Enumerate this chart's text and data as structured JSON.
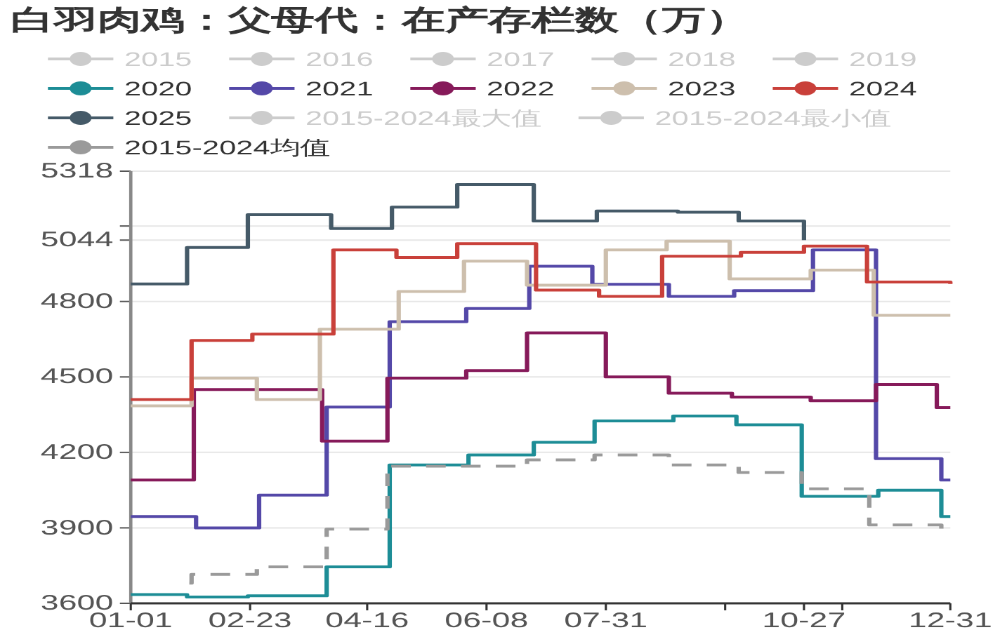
{
  "chart_data": {
    "type": "step",
    "title": "白羽肉鸡：父母代：在产存栏数（万）",
    "xlim": [
      "--01-01",
      "--12-31"
    ],
    "xticks": [
      {
        "value": "--01-01",
        "label": "01-01"
      },
      {
        "value": "--02-23",
        "label": "02-23"
      },
      {
        "value": "--04-16",
        "label": "04-16"
      },
      {
        "value": "--06-08",
        "label": "06-08"
      },
      {
        "value": "--07-31",
        "label": "07-31"
      },
      {
        "value": "--09-22",
        "label": null
      },
      {
        "value": "--10-27",
        "label": "10-27"
      },
      {
        "value": "--11-13",
        "label": null
      },
      {
        "value": "--12-31",
        "label": "12-31"
      }
    ],
    "ylim": [
      3600,
      5318
    ],
    "yticks": [
      3600,
      3900,
      4200,
      4500,
      4800,
      {
        "value": 5044,
        "label": "5044"
      },
      {
        "value": 5100,
        "label": null
      },
      5318
    ],
    "grid": "y",
    "legend": "top",
    "series": [
      {
        "name": "2015",
        "color": "#cccccc"
      },
      {
        "name": "2016",
        "color": "#cccccc"
      },
      {
        "name": "2017",
        "color": "#cccccc"
      },
      {
        "name": "2018",
        "color": "#cccccc"
      },
      {
        "name": "2019",
        "color": "#cccccc"
      },
      {
        "name": "2020",
        "color": "#1d8d96",
        "x": [
          "--01-01",
          "--01-26",
          "--02-22",
          "--03-29",
          "--04-26",
          "--05-31",
          "--06-29",
          "--07-26",
          "--08-30",
          "--09-27",
          "--10-26",
          "--11-29",
          "--12-27",
          "--12-31"
        ],
        "values": [
          3635,
          3625,
          3630,
          3745,
          4150,
          4190,
          4240,
          4325,
          4345,
          4310,
          4025,
          4050,
          3945,
          3945
        ]
      },
      {
        "name": "2021",
        "color": "#5448a8",
        "x": [
          "--01-01",
          "--01-30",
          "--02-27",
          "--03-29",
          "--04-26",
          "--05-30",
          "--06-27",
          "--07-25",
          "--08-28",
          "--09-26",
          "--10-31",
          "--11-28",
          "--12-27",
          "--12-31"
        ],
        "values": [
          3945,
          3900,
          4030,
          4380,
          4720,
          4772,
          4940,
          4868,
          4820,
          4843,
          5005,
          4175,
          4090,
          4090
        ]
      },
      {
        "name": "2022",
        "color": "#861a5a",
        "x": [
          "--01-01",
          "--01-29",
          "--03-27",
          "--04-25",
          "--05-30",
          "--06-26",
          "--07-31",
          "--08-28",
          "--09-25",
          "--10-30",
          "--11-28",
          "--12-25",
          "--12-31"
        ],
        "values": [
          4090,
          4450,
          4245,
          4495,
          4525,
          4675,
          4500,
          4435,
          4420,
          4405,
          4470,
          4378,
          4378
        ]
      },
      {
        "name": "2023",
        "color": "#cdbfad",
        "x": [
          "--01-01",
          "--01-28",
          "--02-26",
          "--03-26",
          "--04-30",
          "--05-29",
          "--06-26",
          "--07-31",
          "--08-27",
          "--09-24",
          "--10-30",
          "--11-27",
          "--12-31"
        ],
        "values": [
          4385,
          4495,
          4410,
          4690,
          4840,
          4960,
          4865,
          5005,
          5040,
          4890,
          4925,
          4745,
          4745
        ]
      },
      {
        "name": "2024",
        "color": "#c9403a",
        "x": [
          "--01-01",
          "--01-28",
          "--02-24",
          "--04-01",
          "--04-29",
          "--05-26",
          "--06-30",
          "--07-28",
          "--08-25",
          "--09-29",
          "--10-27",
          "--11-24",
          "--12-31"
        ],
        "values": [
          4410,
          4645,
          4670,
          5005,
          4975,
          5030,
          4845,
          4820,
          4980,
          4995,
          5020,
          4877,
          4870
        ]
      },
      {
        "name": "2025",
        "color": "#455a68",
        "x": [
          "--01-01",
          "--01-26",
          "--02-22",
          "--03-31",
          "--04-27",
          "--05-26",
          "--06-29",
          "--07-27",
          "--09-01",
          "--09-28",
          "--10-27"
        ],
        "values": [
          4870,
          5015,
          5145,
          5090,
          5175,
          5265,
          5120,
          5160,
          5155,
          5120,
          5044
        ]
      },
      {
        "name": "2015-2024最大值",
        "color": "#cccccc"
      },
      {
        "name": "2015-2024最小值",
        "color": "#cccccc"
      },
      {
        "name": "2015-2024均值",
        "color": "#9a9a9a",
        "line_style": "dashed",
        "x": [
          "--01-27",
          "--01-28",
          "--02-26",
          "--03-29",
          "--04-25",
          "--06-26",
          "--07-26",
          "--08-28",
          "--09-28",
          "--10-26",
          "--11-25",
          "--12-27",
          "--12-31"
        ],
        "values": [
          3680,
          3715,
          3745,
          3895,
          4145,
          4170,
          4190,
          4150,
          4120,
          4055,
          3912,
          3890,
          3890
        ]
      }
    ]
  }
}
